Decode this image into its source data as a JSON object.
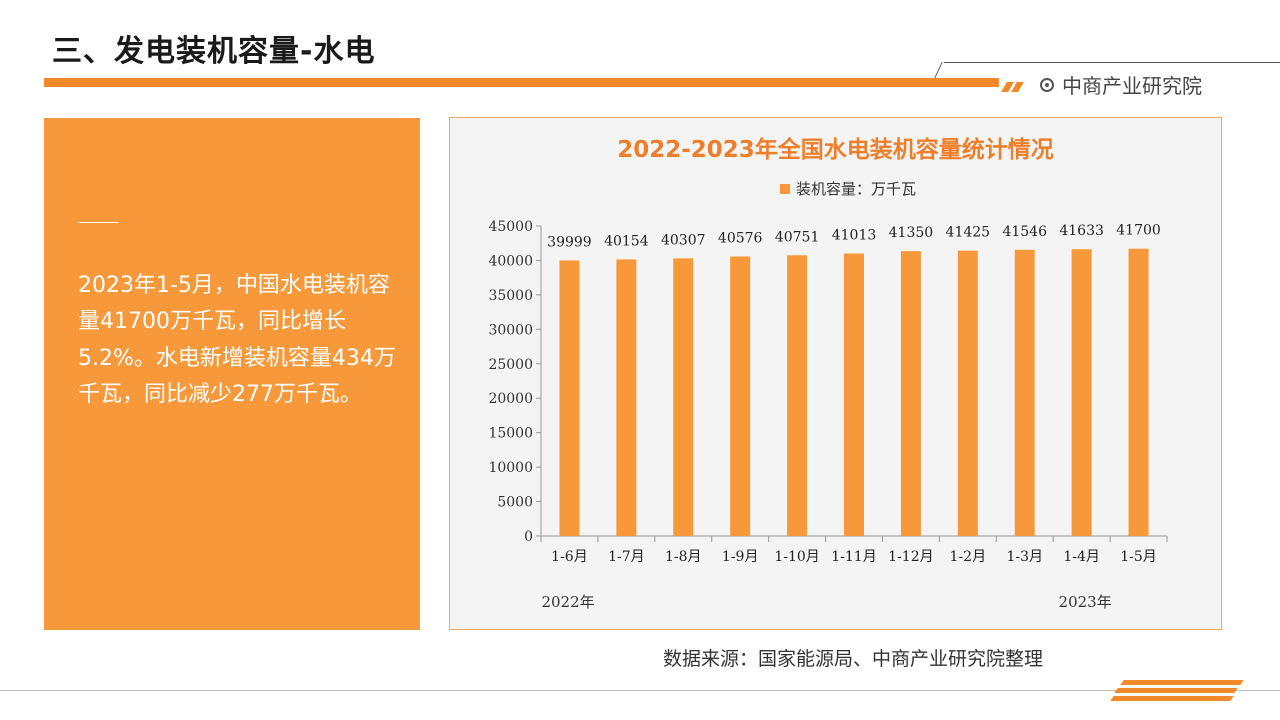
{
  "header": {
    "title": "三、发电装机容量-水电",
    "brand": "中商产业研究院"
  },
  "summary": {
    "text": "2023年1-5月，中国水电装机容量41700万千瓦，同比增长5.2%。水电新增装机容量434万千瓦，同比减少277万千瓦。"
  },
  "source": "数据来源：国家能源局、中商产业研究院整理",
  "colors": {
    "accent": "#f28a2b",
    "bar": "#f7993b",
    "title": "#ee7e2a"
  },
  "chart_data": {
    "type": "bar",
    "title": "2022-2023年全国水电装机容量统计情况",
    "legend": "装机容量：万千瓦",
    "legend_position": "top",
    "categories": [
      "1-6月",
      "1-7月",
      "1-8月",
      "1-9月",
      "1-10月",
      "1-11月",
      "1-12月",
      "1-2月",
      "1-3月",
      "1-4月",
      "1-5月"
    ],
    "groups": [
      {
        "label": "2022年",
        "from": 0,
        "to": 6
      },
      {
        "label": "2023年",
        "from": 7,
        "to": 10
      }
    ],
    "series": [
      {
        "name": "装机容量：万千瓦",
        "values": [
          39999,
          40154,
          40307,
          40576,
          40751,
          41013,
          41350,
          41425,
          41546,
          41633,
          41700
        ]
      }
    ],
    "ylim": [
      0,
      45000
    ],
    "yticks": [
      0,
      5000,
      10000,
      15000,
      20000,
      25000,
      30000,
      35000,
      40000,
      45000
    ],
    "grid": false
  }
}
